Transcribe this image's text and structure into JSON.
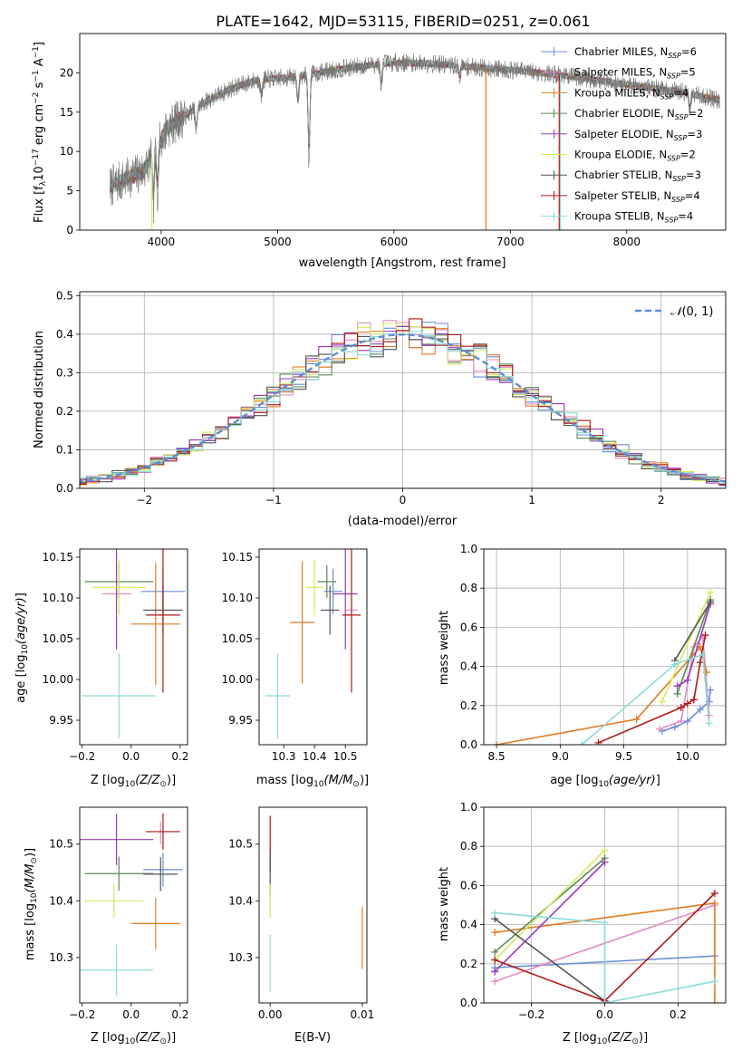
{
  "figure_title": "PLATE=1642, MJD=53115, FIBERID=0251, z=0.061",
  "colors": {
    "Chabrier MILES": "#6a8ed8",
    "Salpeter MILES": "#e58bc4",
    "Kroupa MILES": "#e07c22",
    "Chabrier ELODIE": "#5a8a52",
    "Salpeter ELODIE": "#9a3ab8",
    "Kroupa ELODIE": "#d6ea5a",
    "Chabrier STELIB": "#555555",
    "Salpeter STELIB": "#b01818",
    "Kroupa STELIB": "#86dcdc",
    "normal": "#5b8fd6"
  },
  "chart_data": [
    {
      "id": "spectrum",
      "type": "line",
      "xlabel": "wavelength [Angstrom, rest frame]",
      "ylabel": "Flux [f",
      "xlim": [
        3300,
        8850
      ],
      "ylim": [
        0,
        25
      ],
      "xticks": [
        4000,
        5000,
        6000,
        7000,
        8000
      ],
      "yticks": [
        0,
        5,
        10,
        15,
        20
      ],
      "legend_position": "top-right",
      "legend": [
        "Chabrier MILES, N",
        "Salpeter MILES, N",
        "Kroupa MILES, N",
        "Chabrier ELODIE, N",
        "Salpeter ELODIE, N",
        "Kroupa ELODIE, N",
        "Chabrier STELIB, N",
        "Salpeter STELIB, N",
        "Kroupa STELIB, N"
      ],
      "legend_counts": [
        6,
        5,
        4,
        2,
        3,
        2,
        3,
        4,
        4
      ],
      "continuum": {
        "x": [
          3560,
          3700,
          3850,
          3950,
          4050,
          4200,
          4400,
          4600,
          4800,
          5000,
          5200,
          5500,
          5800,
          6000,
          6300,
          6600,
          7000,
          7500,
          8000,
          8500,
          8800
        ],
        "y": [
          5.5,
          6.5,
          7.5,
          10.0,
          13.0,
          14.5,
          16.5,
          18.0,
          19.0,
          19.3,
          19.6,
          20.4,
          21.0,
          21.3,
          21.2,
          20.8,
          20.4,
          19.6,
          18.5,
          17.5,
          16.5
        ]
      },
      "absorption_features": [
        {
          "x": 3933,
          "depth": 8
        },
        {
          "x": 3968,
          "depth": 7
        },
        {
          "x": 4300,
          "depth": 4
        },
        {
          "x": 4861,
          "depth": 3
        },
        {
          "x": 5175,
          "depth": 5
        },
        {
          "x": 5270,
          "depth": 15
        },
        {
          "x": 5890,
          "depth": 4
        },
        {
          "x": 6563,
          "depth": 2
        },
        {
          "x": 8542,
          "depth": 3
        }
      ],
      "drop_lines": [
        {
          "series": "Kroupa ELODIE",
          "x": 3920
        },
        {
          "series": "Kroupa MILES",
          "x": 6790
        },
        {
          "series": "Salpeter STELIB",
          "x": 7420
        },
        {
          "series": "Kroupa STELIB",
          "x": 7430
        }
      ]
    },
    {
      "id": "residuals",
      "type": "step-histogram",
      "xlabel": "(data-model)/error",
      "ylabel": "Normed distribution",
      "xlim": [
        -2.5,
        2.5
      ],
      "ylim": [
        0,
        0.51
      ],
      "xticks": [
        -2,
        -1,
        0,
        1,
        2
      ],
      "yticks": [
        0.0,
        0.1,
        0.2,
        0.3,
        0.4,
        0.5
      ],
      "bin_width": 0.1,
      "legend_label": "N(0,1)",
      "legend_position": "top-right",
      "grid": true
    },
    {
      "id": "age_vs_Z",
      "type": "errorbar",
      "xlabel": "Z [log",
      "ylabel": "age  [log",
      "xlim": [
        -0.21,
        0.23
      ],
      "ylim": [
        9.92,
        10.16
      ],
      "xticks": [
        -0.2,
        0.0,
        0.2
      ],
      "yticks": [
        9.95,
        10.0,
        10.05,
        10.1,
        10.15
      ],
      "points": [
        {
          "series": "Chabrier MILES",
          "x": 0.13,
          "y": 10.108,
          "xerr": 0.09,
          "yerr": 0.028
        },
        {
          "series": "Salpeter MILES",
          "x": -0.06,
          "y": 10.105,
          "xerr": 0.06,
          "yerr": 0.01
        },
        {
          "series": "Kroupa MILES",
          "x": 0.1,
          "y": 10.068,
          "xerr": 0.1,
          "yerr": 0.075
        },
        {
          "series": "Chabrier ELODIE",
          "x": -0.05,
          "y": 10.12,
          "xerr": 0.14,
          "yerr": 0.02
        },
        {
          "series": "Salpeter ELODIE",
          "x": -0.06,
          "y": 10.105,
          "xerr": 0.0,
          "yerr": 0.068
        },
        {
          "series": "Kroupa ELODIE",
          "x": -0.05,
          "y": 10.113,
          "xerr": 0.11,
          "yerr": 0.034
        },
        {
          "series": "Chabrier STELIB",
          "x": 0.13,
          "y": 10.085,
          "xerr": 0.08,
          "yerr": 0.03
        },
        {
          "series": "Salpeter STELIB",
          "x": 0.13,
          "y": 10.079,
          "xerr": 0.07,
          "yerr": 0.095
        },
        {
          "series": "Kroupa STELIB",
          "x": -0.05,
          "y": 9.98,
          "xerr": 0.15,
          "yerr": 0.052
        }
      ]
    },
    {
      "id": "age_vs_mass",
      "type": "errorbar",
      "xlabel": "mass [log",
      "ylabel": "",
      "xlim": [
        10.22,
        10.57
      ],
      "ylim": [
        9.92,
        10.16
      ],
      "xticks": [
        10.3,
        10.4,
        10.5
      ],
      "yticks": [
        9.95,
        10.0,
        10.05,
        10.1,
        10.15
      ],
      "points": [
        {
          "series": "Chabrier MILES",
          "x": 10.46,
          "y": 10.108,
          "xerr": 0.03,
          "yerr": 0.028
        },
        {
          "series": "Salpeter MILES",
          "x": 10.52,
          "y": 10.085,
          "xerr": 0.02,
          "yerr": 0.01
        },
        {
          "series": "Kroupa MILES",
          "x": 10.36,
          "y": 10.07,
          "xerr": 0.04,
          "yerr": 0.075
        },
        {
          "series": "Chabrier ELODIE",
          "x": 10.44,
          "y": 10.12,
          "xerr": 0.03,
          "yerr": 0.02
        },
        {
          "series": "Salpeter ELODIE",
          "x": 10.5,
          "y": 10.105,
          "xerr": 0.04,
          "yerr": 0.068
        },
        {
          "series": "Kroupa ELODIE",
          "x": 10.4,
          "y": 10.113,
          "xerr": 0.03,
          "yerr": 0.034
        },
        {
          "series": "Chabrier STELIB",
          "x": 10.45,
          "y": 10.085,
          "xerr": 0.03,
          "yerr": 0.03
        },
        {
          "series": "Salpeter STELIB",
          "x": 10.52,
          "y": 10.079,
          "xerr": 0.03,
          "yerr": 0.095
        },
        {
          "series": "Kroupa STELIB",
          "x": 10.28,
          "y": 9.98,
          "xerr": 0.04,
          "yerr": 0.052
        }
      ]
    },
    {
      "id": "weight_vs_age",
      "type": "line",
      "xlabel": "age  [log",
      "ylabel": "mass weight",
      "xlim": [
        8.4,
        10.3
      ],
      "ylim": [
        0,
        1
      ],
      "xticks": [
        8.5,
        9.0,
        9.5,
        10.0
      ],
      "yticks": [
        0.0,
        0.2,
        0.4,
        0.6,
        0.8,
        1.0
      ],
      "grid": true,
      "series": [
        {
          "name": "Chabrier MILES",
          "x": [
            9.8,
            9.9,
            10.0,
            10.1,
            10.17,
            10.18
          ],
          "y": [
            0.07,
            0.09,
            0.12,
            0.18,
            0.22,
            0.28
          ]
        },
        {
          "name": "Salpeter MILES",
          "x": [
            9.78,
            9.95,
            10.05,
            10.12,
            10.17
          ],
          "y": [
            0.08,
            0.12,
            0.5,
            0.55,
            0.15
          ]
        },
        {
          "name": "Kroupa MILES",
          "x": [
            8.5,
            9.6,
            10.1,
            10.15
          ],
          "y": [
            0.0,
            0.13,
            0.5,
            0.37
          ]
        },
        {
          "name": "Chabrier ELODIE",
          "x": [
            9.92,
            10.18
          ],
          "y": [
            0.26,
            0.74
          ]
        },
        {
          "name": "Salpeter ELODIE",
          "x": [
            9.92,
            10.0,
            10.18
          ],
          "y": [
            0.3,
            0.33,
            0.72
          ]
        },
        {
          "name": "Kroupa ELODIE",
          "x": [
            9.8,
            10.18
          ],
          "y": [
            0.22,
            0.78
          ]
        },
        {
          "name": "Chabrier STELIB",
          "x": [
            9.9,
            10.18
          ],
          "y": [
            0.43,
            0.73
          ]
        },
        {
          "name": "Salpeter STELIB",
          "x": [
            9.3,
            9.95,
            10.0,
            10.05,
            10.1,
            10.14
          ],
          "y": [
            0.01,
            0.19,
            0.21,
            0.23,
            0.42,
            0.56
          ]
        },
        {
          "name": "Kroupa STELIB",
          "x": [
            9.17,
            9.9,
            10.12,
            10.17
          ],
          "y": [
            0.0,
            0.41,
            0.46,
            0.11
          ]
        }
      ]
    },
    {
      "id": "mass_vs_Z",
      "type": "errorbar",
      "xlabel": "Z [log",
      "ylabel": "mass [log",
      "xlim": [
        -0.21,
        0.23
      ],
      "ylim": [
        10.22,
        10.565
      ],
      "xticks": [
        -0.2,
        0.0,
        0.2
      ],
      "yticks": [
        10.3,
        10.4,
        10.5
      ],
      "points": [
        {
          "series": "Chabrier MILES",
          "x": 0.13,
          "y": 10.455,
          "xerr": 0.08,
          "yerr": 0.03
        },
        {
          "series": "Salpeter MILES",
          "x": 0.12,
          "y": 10.52,
          "xerr": 0.0,
          "yerr": 0.02
        },
        {
          "series": "Kroupa MILES",
          "x": 0.1,
          "y": 10.36,
          "xerr": 0.1,
          "yerr": 0.045
        },
        {
          "series": "Chabrier ELODIE",
          "x": -0.05,
          "y": 10.448,
          "xerr": 0.14,
          "yerr": 0.03
        },
        {
          "series": "Salpeter ELODIE",
          "x": -0.06,
          "y": 10.508,
          "xerr": 0.15,
          "yerr": 0.045
        },
        {
          "series": "Kroupa ELODIE",
          "x": -0.07,
          "y": 10.4,
          "xerr": 0.12,
          "yerr": 0.03
        },
        {
          "series": "Chabrier STELIB",
          "x": 0.12,
          "y": 10.447,
          "xerr": 0.07,
          "yerr": 0.03
        },
        {
          "series": "Salpeter STELIB",
          "x": 0.13,
          "y": 10.522,
          "xerr": 0.07,
          "yerr": 0.032
        },
        {
          "series": "Kroupa STELIB",
          "x": -0.06,
          "y": 10.278,
          "xerr": 0.15,
          "yerr": 0.045
        }
      ]
    },
    {
      "id": "mass_vs_EBV",
      "type": "errorbar",
      "xlabel": "E(B-V)",
      "ylabel": "",
      "xlim": [
        -0.0012,
        0.0105
      ],
      "ylim": [
        10.22,
        10.565
      ],
      "xticks": [
        0.0,
        0.01
      ],
      "yticks": [
        10.3,
        10.4,
        10.5
      ],
      "points": [
        {
          "series": "Salpeter STELIB",
          "x": 0.0,
          "y": 10.5,
          "xerr": 0.0,
          "yerr": 0.05
        },
        {
          "series": "Chabrier STELIB",
          "x": 0.0,
          "y": 10.45,
          "xerr": 0.0,
          "yerr": 0.04
        },
        {
          "series": "Kroupa ELODIE",
          "x": 0.0,
          "y": 10.4,
          "xerr": 0.0,
          "yerr": 0.03
        },
        {
          "series": "Kroupa STELIB",
          "x": 0.0,
          "y": 10.29,
          "xerr": 0.0,
          "yerr": 0.05
        },
        {
          "series": "Kroupa MILES",
          "x": 0.01,
          "y": 10.335,
          "xerr": 0.0,
          "yerr": 0.055
        }
      ]
    },
    {
      "id": "weight_vs_Z",
      "type": "line",
      "xlabel": "Z [log",
      "ylabel": "mass weight",
      "xlim": [
        -0.33,
        0.33
      ],
      "ylim": [
        0,
        1
      ],
      "xticks": [
        -0.2,
        0.0,
        0.2
      ],
      "yticks": [
        0.0,
        0.2,
        0.4,
        0.6,
        0.8,
        1.0
      ],
      "grid": true,
      "series": [
        {
          "name": "Chabrier MILES",
          "x": [
            -0.3,
            -0.3,
            0.3
          ],
          "y": [
            0.16,
            0.18,
            0.24
          ]
        },
        {
          "name": "Salpeter MILES",
          "x": [
            -0.3,
            0.3
          ],
          "y": [
            0.11,
            0.5
          ]
        },
        {
          "name": "Kroupa MILES",
          "x": [
            -0.3,
            0.3,
            0.3
          ],
          "y": [
            0.36,
            0.51,
            0.0
          ]
        },
        {
          "name": "Chabrier ELODIE",
          "x": [
            -0.3,
            0.0
          ],
          "y": [
            0.26,
            0.74
          ]
        },
        {
          "name": "Salpeter ELODIE",
          "x": [
            -0.3,
            0.0
          ],
          "y": [
            0.16,
            0.72
          ]
        },
        {
          "name": "Kroupa ELODIE",
          "x": [
            -0.3,
            0.0
          ],
          "y": [
            0.22,
            0.78
          ]
        },
        {
          "name": "Chabrier STELIB",
          "x": [
            -0.3,
            0.0
          ],
          "y": [
            0.43,
            0.01
          ]
        },
        {
          "name": "Salpeter STELIB",
          "x": [
            -0.3,
            0.0,
            0.3
          ],
          "y": [
            0.22,
            0.01,
            0.56
          ]
        },
        {
          "name": "Kroupa STELIB",
          "x": [
            -0.3,
            0.0,
            0.0,
            0.3
          ],
          "y": [
            0.46,
            0.41,
            0.0,
            0.11
          ]
        }
      ]
    }
  ]
}
